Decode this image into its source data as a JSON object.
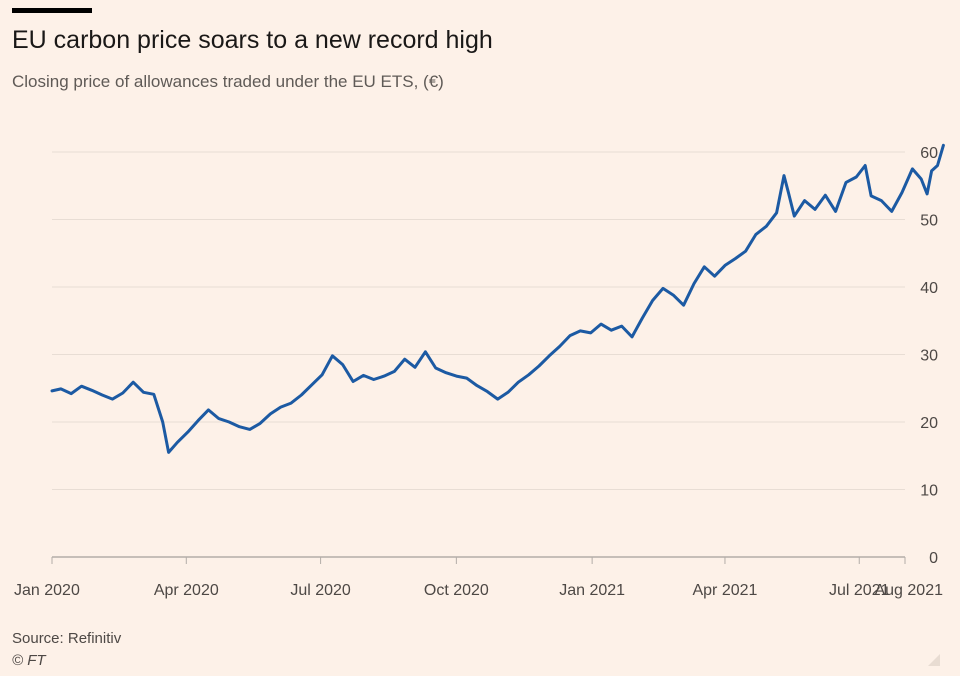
{
  "title": "EU carbon price soars to a new record high",
  "subtitle": "Closing price of allowances traded under the EU ETS, (€)",
  "source": "Source: Refinitiv",
  "copyright": "© FT",
  "colors": {
    "line": "#1c5aa3",
    "grid": "#e8ddd4",
    "axis": "#b3ada8",
    "text": "#4d4845"
  },
  "chart_data": {
    "type": "line",
    "title": "EU carbon price soars to a new record high",
    "ylabel": "",
    "xlabel": "",
    "ylim": [
      0,
      60
    ],
    "yticks": [
      0,
      10,
      20,
      30,
      40,
      50,
      60
    ],
    "grid": true,
    "y_axis_side": "right",
    "xticks": [
      {
        "date": "2020-01-01",
        "label": "Jan 2020"
      },
      {
        "date": "2020-04-01",
        "label": "Apr 2020"
      },
      {
        "date": "2020-07-01",
        "label": "Jul 2020"
      },
      {
        "date": "2020-10-01",
        "label": "Oct 2020"
      },
      {
        "date": "2021-01-01",
        "label": "Jan 2021"
      },
      {
        "date": "2021-04-01",
        "label": "Apr 2021"
      },
      {
        "date": "2021-07-01",
        "label": "Jul 2021"
      },
      {
        "date": "2021-08-01",
        "label": "Aug 2021"
      }
    ],
    "series": [
      {
        "values": [
          [
            "2020-01-01",
            24.6
          ],
          [
            "2020-01-07",
            24.9
          ],
          [
            "2020-01-14",
            24.2
          ],
          [
            "2020-01-21",
            25.3
          ],
          [
            "2020-01-28",
            24.7
          ],
          [
            "2020-02-04",
            24.0
          ],
          [
            "2020-02-11",
            23.4
          ],
          [
            "2020-02-18",
            24.3
          ],
          [
            "2020-02-25",
            25.9
          ],
          [
            "2020-03-03",
            24.4
          ],
          [
            "2020-03-10",
            24.1
          ],
          [
            "2020-03-16",
            20.0
          ],
          [
            "2020-03-20",
            15.5
          ],
          [
            "2020-03-26",
            17.0
          ],
          [
            "2020-04-02",
            18.5
          ],
          [
            "2020-04-09",
            20.2
          ],
          [
            "2020-04-16",
            21.8
          ],
          [
            "2020-04-23",
            20.5
          ],
          [
            "2020-04-30",
            20.0
          ],
          [
            "2020-05-07",
            19.3
          ],
          [
            "2020-05-14",
            18.9
          ],
          [
            "2020-05-21",
            19.8
          ],
          [
            "2020-05-28",
            21.2
          ],
          [
            "2020-06-04",
            22.2
          ],
          [
            "2020-06-11",
            22.8
          ],
          [
            "2020-06-18",
            24.0
          ],
          [
            "2020-06-25",
            25.5
          ],
          [
            "2020-07-02",
            27.0
          ],
          [
            "2020-07-09",
            29.8
          ],
          [
            "2020-07-16",
            28.5
          ],
          [
            "2020-07-23",
            26.0
          ],
          [
            "2020-07-30",
            26.9
          ],
          [
            "2020-08-06",
            26.3
          ],
          [
            "2020-08-13",
            26.8
          ],
          [
            "2020-08-20",
            27.5
          ],
          [
            "2020-08-27",
            29.3
          ],
          [
            "2020-09-03",
            28.1
          ],
          [
            "2020-09-10",
            30.4
          ],
          [
            "2020-09-17",
            28.0
          ],
          [
            "2020-09-24",
            27.3
          ],
          [
            "2020-10-01",
            26.8
          ],
          [
            "2020-10-08",
            26.5
          ],
          [
            "2020-10-15",
            25.4
          ],
          [
            "2020-10-22",
            24.5
          ],
          [
            "2020-10-29",
            23.4
          ],
          [
            "2020-11-05",
            24.4
          ],
          [
            "2020-11-12",
            25.9
          ],
          [
            "2020-11-19",
            27.0
          ],
          [
            "2020-11-26",
            28.3
          ],
          [
            "2020-12-03",
            29.8
          ],
          [
            "2020-12-10",
            31.2
          ],
          [
            "2020-12-17",
            32.8
          ],
          [
            "2020-12-24",
            33.5
          ],
          [
            "2020-12-31",
            33.2
          ],
          [
            "2021-01-07",
            34.5
          ],
          [
            "2021-01-14",
            33.6
          ],
          [
            "2021-01-21",
            34.2
          ],
          [
            "2021-01-28",
            32.6
          ],
          [
            "2021-02-04",
            35.4
          ],
          [
            "2021-02-11",
            38.0
          ],
          [
            "2021-02-18",
            39.8
          ],
          [
            "2021-02-25",
            38.8
          ],
          [
            "2021-03-04",
            37.3
          ],
          [
            "2021-03-11",
            40.5
          ],
          [
            "2021-03-18",
            43.0
          ],
          [
            "2021-03-25",
            41.6
          ],
          [
            "2021-04-01",
            43.2
          ],
          [
            "2021-04-08",
            44.2
          ],
          [
            "2021-04-15",
            45.3
          ],
          [
            "2021-04-22",
            47.8
          ],
          [
            "2021-04-29",
            49.0
          ],
          [
            "2021-05-06",
            51.0
          ],
          [
            "2021-05-11",
            56.5
          ],
          [
            "2021-05-14",
            54.0
          ],
          [
            "2021-05-18",
            50.5
          ],
          [
            "2021-05-25",
            52.8
          ],
          [
            "2021-06-01",
            51.5
          ],
          [
            "2021-06-08",
            53.6
          ],
          [
            "2021-06-15",
            51.2
          ],
          [
            "2021-06-22",
            55.5
          ],
          [
            "2021-06-29",
            56.3
          ],
          [
            "2021-07-05",
            58.0
          ],
          [
            "2021-07-09",
            53.5
          ],
          [
            "2021-07-16",
            52.8
          ],
          [
            "2021-07-23",
            51.2
          ],
          [
            "2021-07-30",
            54.0
          ],
          [
            "2021-08-06",
            57.5
          ],
          [
            "2021-08-12",
            56.0
          ],
          [
            "2021-08-16",
            53.8
          ],
          [
            "2021-08-19",
            57.2
          ],
          [
            "2021-08-23",
            58.0
          ],
          [
            "2021-08-27",
            61.0
          ]
        ]
      }
    ]
  }
}
